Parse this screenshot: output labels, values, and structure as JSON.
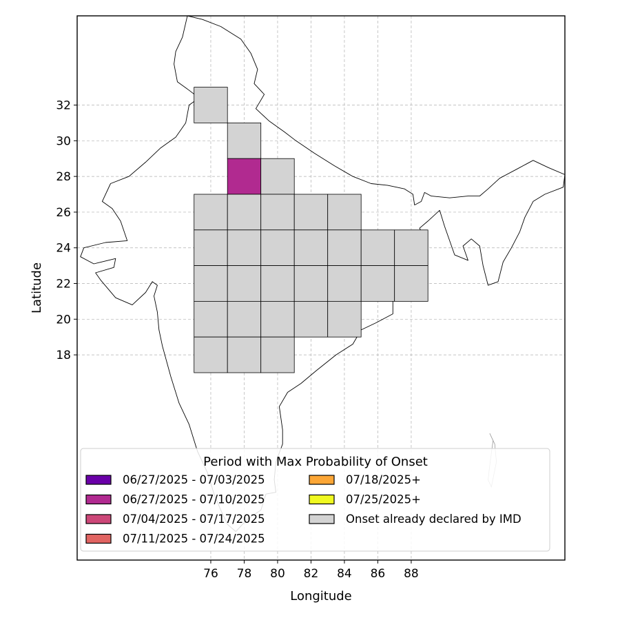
{
  "chart_data": {
    "type": "heatmap",
    "xlabel": "Longitude",
    "ylabel": "Latitude",
    "xlim": [
      68.0,
      97.2
    ],
    "ylim": [
      6.5,
      37.0
    ],
    "x_ticks": [
      76,
      78,
      80,
      82,
      84,
      86,
      88
    ],
    "y_ticks": [
      18,
      20,
      22,
      24,
      26,
      28,
      30,
      32
    ],
    "grid": true,
    "cell_size_deg": 2,
    "legend": {
      "title": "Period with Max Probability of Onset",
      "placement": "lower-center",
      "entries": [
        {
          "label": "06/27/2025 - 07/03/2025",
          "color": "#6a00a8"
        },
        {
          "label": "06/27/2025 - 07/10/2025",
          "color": "#b12a90"
        },
        {
          "label": "07/04/2025 - 07/17/2025",
          "color": "#cc4778"
        },
        {
          "label": "07/11/2025 - 07/24/2025",
          "color": "#e16462"
        },
        {
          "label": "07/18/2025+",
          "color": "#fca636"
        },
        {
          "label": "07/25/2025+",
          "color": "#f0f921"
        },
        {
          "label": "Onset already declared by IMD",
          "color": "#d3d3d3"
        }
      ]
    },
    "cells": [
      {
        "lon": 75,
        "lat": 31,
        "category": "Onset already declared by IMD"
      },
      {
        "lon": 77,
        "lat": 29,
        "category": "Onset already declared by IMD"
      },
      {
        "lon": 77,
        "lat": 27,
        "category": "06/27/2025 - 07/10/2025"
      },
      {
        "lon": 79,
        "lat": 27,
        "category": "Onset already declared by IMD"
      },
      {
        "lon": 75,
        "lat": 25,
        "category": "Onset already declared by IMD"
      },
      {
        "lon": 77,
        "lat": 25,
        "category": "Onset already declared by IMD"
      },
      {
        "lon": 79,
        "lat": 25,
        "category": "Onset already declared by IMD"
      },
      {
        "lon": 81,
        "lat": 25,
        "category": "Onset already declared by IMD"
      },
      {
        "lon": 83,
        "lat": 25,
        "category": "Onset already declared by IMD"
      },
      {
        "lon": 75,
        "lat": 23,
        "category": "Onset already declared by IMD"
      },
      {
        "lon": 77,
        "lat": 23,
        "category": "Onset already declared by IMD"
      },
      {
        "lon": 79,
        "lat": 23,
        "category": "Onset already declared by IMD"
      },
      {
        "lon": 81,
        "lat": 23,
        "category": "Onset already declared by IMD"
      },
      {
        "lon": 83,
        "lat": 23,
        "category": "Onset already declared by IMD"
      },
      {
        "lon": 85,
        "lat": 23,
        "category": "Onset already declared by IMD"
      },
      {
        "lon": 87,
        "lat": 23,
        "category": "Onset already declared by IMD"
      },
      {
        "lon": 75,
        "lat": 21,
        "category": "Onset already declared by IMD"
      },
      {
        "lon": 77,
        "lat": 21,
        "category": "Onset already declared by IMD"
      },
      {
        "lon": 79,
        "lat": 21,
        "category": "Onset already declared by IMD"
      },
      {
        "lon": 81,
        "lat": 21,
        "category": "Onset already declared by IMD"
      },
      {
        "lon": 83,
        "lat": 21,
        "category": "Onset already declared by IMD"
      },
      {
        "lon": 85,
        "lat": 21,
        "category": "Onset already declared by IMD"
      },
      {
        "lon": 87,
        "lat": 21,
        "category": "Onset already declared by IMD"
      },
      {
        "lon": 75,
        "lat": 19,
        "category": "Onset already declared by IMD"
      },
      {
        "lon": 77,
        "lat": 19,
        "category": "Onset already declared by IMD"
      },
      {
        "lon": 79,
        "lat": 19,
        "category": "Onset already declared by IMD"
      },
      {
        "lon": 81,
        "lat": 19,
        "category": "Onset already declared by IMD"
      },
      {
        "lon": 83,
        "lat": 19,
        "category": "Onset already declared by IMD"
      },
      {
        "lon": 75,
        "lat": 17,
        "category": "Onset already declared by IMD"
      },
      {
        "lon": 77,
        "lat": 17,
        "category": "Onset already declared by IMD"
      },
      {
        "lon": 79,
        "lat": 17,
        "category": "Onset already declared by IMD"
      }
    ],
    "india_outline": [
      [
        74.6,
        37.0
      ],
      [
        75.5,
        36.8
      ],
      [
        76.6,
        36.4
      ],
      [
        77.8,
        35.7
      ],
      [
        78.4,
        34.9
      ],
      [
        78.8,
        34.0
      ],
      [
        78.6,
        33.2
      ],
      [
        79.2,
        32.6
      ],
      [
        78.7,
        31.8
      ],
      [
        79.5,
        31.1
      ],
      [
        80.4,
        30.5
      ],
      [
        81.1,
        30.0
      ],
      [
        82.2,
        29.3
      ],
      [
        83.4,
        28.6
      ],
      [
        84.5,
        28.0
      ],
      [
        85.6,
        27.6
      ],
      [
        86.6,
        27.5
      ],
      [
        87.6,
        27.3
      ],
      [
        88.1,
        27.0
      ],
      [
        88.2,
        26.4
      ],
      [
        88.6,
        26.6
      ],
      [
        88.8,
        27.1
      ],
      [
        89.2,
        26.9
      ],
      [
        90.3,
        26.8
      ],
      [
        91.4,
        26.9
      ],
      [
        92.1,
        26.9
      ],
      [
        92.6,
        27.3
      ],
      [
        93.3,
        27.9
      ],
      [
        94.3,
        28.4
      ],
      [
        95.3,
        28.9
      ],
      [
        96.2,
        28.5
      ],
      [
        97.2,
        28.1
      ],
      [
        97.1,
        27.4
      ],
      [
        96.0,
        27.0
      ],
      [
        95.3,
        26.6
      ],
      [
        94.8,
        25.7
      ],
      [
        94.5,
        24.9
      ],
      [
        94.0,
        24.0
      ],
      [
        93.5,
        23.2
      ],
      [
        93.2,
        22.1
      ],
      [
        92.6,
        21.9
      ],
      [
        92.3,
        23.0
      ],
      [
        92.1,
        24.1
      ],
      [
        91.6,
        24.5
      ],
      [
        91.1,
        24.1
      ],
      [
        91.4,
        23.3
      ],
      [
        90.6,
        23.6
      ],
      [
        90.0,
        25.2
      ],
      [
        89.7,
        26.1
      ],
      [
        89.0,
        25.5
      ],
      [
        88.5,
        25.1
      ],
      [
        88.9,
        24.3
      ],
      [
        88.7,
        23.1
      ],
      [
        89.0,
        22.0
      ],
      [
        88.6,
        21.7
      ],
      [
        87.4,
        21.5
      ],
      [
        86.9,
        21.0
      ],
      [
        86.9,
        20.3
      ],
      [
        85.9,
        19.8
      ],
      [
        85.0,
        19.4
      ],
      [
        84.5,
        18.6
      ],
      [
        83.5,
        18.0
      ],
      [
        82.3,
        17.1
      ],
      [
        81.4,
        16.4
      ],
      [
        80.6,
        15.9
      ],
      [
        80.1,
        15.1
      ],
      [
        80.3,
        13.8
      ],
      [
        80.3,
        13.0
      ],
      [
        79.9,
        12.0
      ],
      [
        79.8,
        11.0
      ],
      [
        79.9,
        10.3
      ],
      [
        79.3,
        10.2
      ],
      [
        79.0,
        9.3
      ],
      [
        78.2,
        8.8
      ],
      [
        77.5,
        8.1
      ],
      [
        77.0,
        8.5
      ],
      [
        76.6,
        9.3
      ],
      [
        76.2,
        10.2
      ],
      [
        75.8,
        11.4
      ],
      [
        75.2,
        12.6
      ],
      [
        74.7,
        14.1
      ],
      [
        74.1,
        15.3
      ],
      [
        73.6,
        16.8
      ],
      [
        73.1,
        18.5
      ],
      [
        72.9,
        19.4
      ],
      [
        72.8,
        20.4
      ],
      [
        72.6,
        21.3
      ],
      [
        72.8,
        21.9
      ],
      [
        72.5,
        22.1
      ],
      [
        72.1,
        21.5
      ],
      [
        71.3,
        20.8
      ],
      [
        70.3,
        21.2
      ],
      [
        69.4,
        22.2
      ],
      [
        69.1,
        22.6
      ],
      [
        70.2,
        22.9
      ],
      [
        70.3,
        23.4
      ],
      [
        69.0,
        23.1
      ],
      [
        68.2,
        23.5
      ],
      [
        68.4,
        24.0
      ],
      [
        69.7,
        24.3
      ],
      [
        71.0,
        24.4
      ],
      [
        70.6,
        25.5
      ],
      [
        70.1,
        26.2
      ],
      [
        69.5,
        26.6
      ],
      [
        70.0,
        27.6
      ],
      [
        71.1,
        28.0
      ],
      [
        72.1,
        28.8
      ],
      [
        73.0,
        29.6
      ],
      [
        73.9,
        30.2
      ],
      [
        74.5,
        31.0
      ],
      [
        74.7,
        32.0
      ],
      [
        75.3,
        32.4
      ],
      [
        74.6,
        32.9
      ],
      [
        74.0,
        33.3
      ],
      [
        73.8,
        34.3
      ],
      [
        73.9,
        35.0
      ],
      [
        74.3,
        35.8
      ],
      [
        74.6,
        37.0
      ]
    ],
    "andaman_islands": [
      [
        92.7,
        13.6
      ],
      [
        92.9,
        13.2
      ],
      [
        92.8,
        12.5
      ],
      [
        92.7,
        11.8
      ],
      [
        92.6,
        11.0
      ],
      [
        92.8,
        10.6
      ],
      [
        93.1,
        12.0
      ],
      [
        93.0,
        13.0
      ],
      [
        92.7,
        13.6
      ]
    ]
  }
}
